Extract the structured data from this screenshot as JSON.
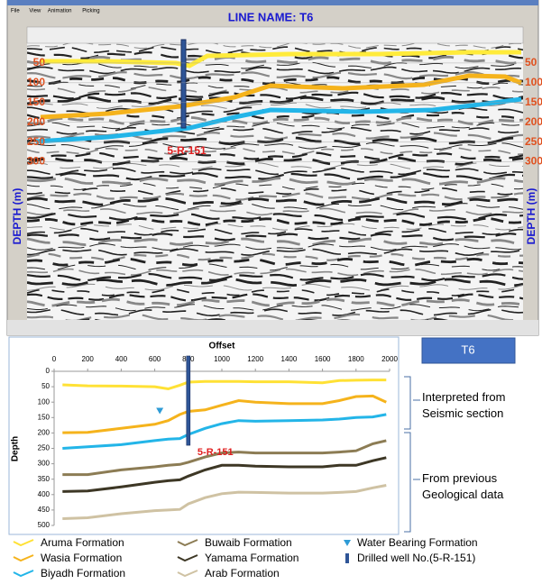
{
  "screenshot": {
    "menu": [
      "File",
      "View",
      "Animation",
      "Picking"
    ],
    "line_name": "LINE NAME: T6",
    "well_label": "5-R-151",
    "depth_axis_label": "DEPTH (m)",
    "depth_lim": [
      0,
      700
    ],
    "depth_ticks": [
      50,
      100,
      150,
      200,
      250,
      300
    ]
  },
  "chart_data": {
    "type": "line",
    "x_label": "Offset",
    "y_label": "Depth",
    "x": [
      50,
      200,
      400,
      600,
      680,
      750,
      800,
      900,
      1000,
      1100,
      1200,
      1400,
      1600,
      1700,
      1800,
      1900,
      1980
    ],
    "series": [
      {
        "name": "Aruma Formation",
        "color": "#ffe135",
        "values": [
          44,
          47,
          48,
          50,
          57,
          45,
          35,
          33,
          33,
          33,
          34,
          34,
          37,
          30,
          29,
          28,
          28
        ]
      },
      {
        "name": "Wasia  Formation",
        "color": "#f5b31c",
        "values": [
          199,
          198,
          185,
          172,
          160,
          140,
          130,
          125,
          110,
          95,
          100,
          105,
          105,
          95,
          82,
          80,
          100
        ]
      },
      {
        "name": "Biyadh Formation",
        "color": "#23b5e8",
        "values": [
          250,
          245,
          238,
          225,
          220,
          218,
          205,
          185,
          170,
          160,
          162,
          160,
          158,
          155,
          150,
          148,
          140
        ]
      },
      {
        "name": "Buwaib Formation",
        "color": "#8c7c54",
        "values": [
          335,
          335,
          320,
          310,
          305,
          302,
          295,
          278,
          265,
          262,
          265,
          265,
          265,
          262,
          258,
          235,
          225
        ]
      },
      {
        "name": "Yamama Formation",
        "color": "#3d3725",
        "values": [
          390,
          388,
          375,
          360,
          355,
          352,
          340,
          320,
          305,
          305,
          308,
          310,
          310,
          305,
          305,
          290,
          280
        ]
      },
      {
        "name": "Arab Formation",
        "color": "#cfc2a3",
        "values": [
          478,
          475,
          462,
          452,
          450,
          448,
          430,
          410,
          397,
          392,
          393,
          395,
          395,
          393,
          390,
          378,
          370
        ]
      }
    ],
    "water_bearing": {
      "name": "Water Bearing Formation",
      "x": 630,
      "y": 130,
      "color": "#2e9bd6"
    },
    "well": {
      "name": "Drilled well No.(5-R-151)",
      "label": "5-R-151",
      "x": 800,
      "y": [
        0,
        240
      ],
      "color": "#2f5597"
    },
    "xlim": [
      0,
      2000
    ],
    "xticks": [
      0,
      200,
      400,
      600,
      800,
      1000,
      1200,
      1400,
      1600,
      1800,
      2000
    ],
    "ylim": [
      0,
      500
    ],
    "yticks": [
      0,
      50,
      100,
      150,
      200,
      250,
      300,
      350,
      400,
      450,
      500
    ],
    "y_inverted": true,
    "grid": false
  },
  "panel": {
    "box_label": "T6",
    "annotations": [
      "Interpreted from Seismic section",
      "From previous Geological data"
    ]
  }
}
